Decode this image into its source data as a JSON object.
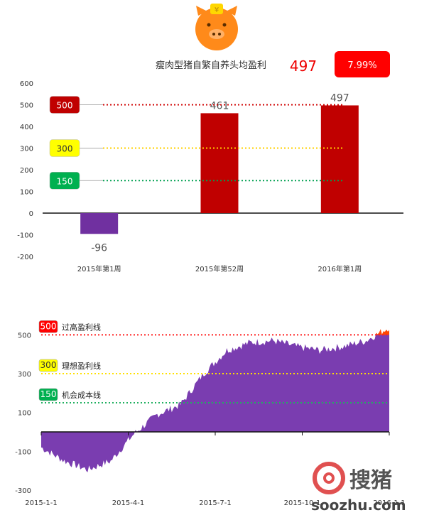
{
  "header": {
    "title": "瘦肉型猪自繁自养头均盈利",
    "value": "497",
    "change": "7.99%",
    "accent": "#ff0000"
  },
  "chart_data": [
    {
      "type": "bar",
      "categories": [
        "2015年第1周",
        "2015年第52周",
        "2016年第1周"
      ],
      "values": [
        -96,
        461,
        497
      ],
      "value_labels": [
        "-96",
        "461",
        "497"
      ],
      "bar_colors": [
        "#7030a0",
        "#c00000",
        "#c00000"
      ],
      "ylim": [
        -200,
        600
      ],
      "yticks": [
        -200,
        -100,
        0,
        100,
        200,
        300,
        400,
        500,
        600
      ],
      "reference_lines": [
        {
          "value": 500,
          "label": "500",
          "color": "#d00000",
          "fill": "#c00000",
          "text_color": "#ffffff"
        },
        {
          "value": 300,
          "label": "300",
          "color": "#ffd000",
          "fill": "#ffff00",
          "text_color": "#333333"
        },
        {
          "value": 150,
          "label": "150",
          "color": "#00a050",
          "fill": "#00b050",
          "text_color": "#ffffff"
        }
      ]
    },
    {
      "type": "area",
      "x": [
        "2015-1-1",
        "2015-2-1",
        "2015-3-1",
        "2015-4-1",
        "2015-5-1",
        "2015-6-1",
        "2015-6-20",
        "2015-7-1",
        "2015-7-15",
        "2015-8-1",
        "2015-8-15",
        "2015-9-1",
        "2015-10-1",
        "2015-11-1",
        "2015-12-1",
        "2016-1-1"
      ],
      "values": [
        -80,
        -150,
        -195,
        -150,
        -10,
        90,
        140,
        300,
        420,
        460,
        470,
        440,
        420,
        440,
        470,
        540
      ],
      "xtick_labels": [
        "2015-1-1",
        "2015-4-1",
        "2015-7-1",
        "2015-10-1",
        "2016-1-1"
      ],
      "ylim": [
        -300,
        600
      ],
      "yticks": [
        -300,
        -100,
        100,
        300,
        500
      ],
      "reference_lines": [
        {
          "value": 500,
          "label": "500",
          "name": "过高盈利线",
          "color": "#ff2020",
          "fill": "#ff0000",
          "text_color": "#ffffff"
        },
        {
          "value": 300,
          "label": "300",
          "name": "理想盈利线",
          "color": "#ffe000",
          "fill": "#ffff00",
          "text_color": "#333333"
        },
        {
          "value": 150,
          "label": "150",
          "name": "机会成本线",
          "color": "#20b060",
          "fill": "#00b050",
          "text_color": "#ffffff"
        }
      ]
    }
  ],
  "watermark": {
    "brand": "搜猪",
    "url": "soozhu.com"
  }
}
